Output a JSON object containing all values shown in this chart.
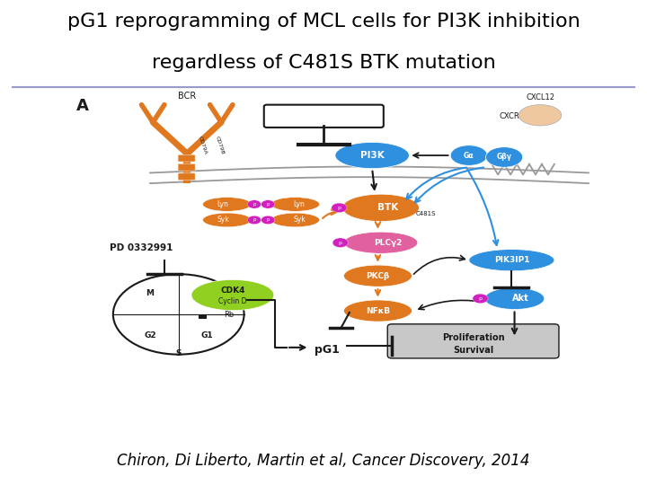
{
  "title_line1": "pG1 reprogramming of MCL cells for PI3K inhibition",
  "title_line2": "regardless of C481S BTK mutation",
  "title_fontsize": 16,
  "title_color": "#000000",
  "citation": "Chiron, Di Liberto, Martin et al, Cancer Discovery, 2014",
  "citation_fontsize": 12,
  "citation_style": "italic",
  "bg_color": "#ffffff",
  "separator_color": "#9999cc",
  "fig_width": 7.2,
  "fig_height": 5.4,
  "dpi": 100
}
